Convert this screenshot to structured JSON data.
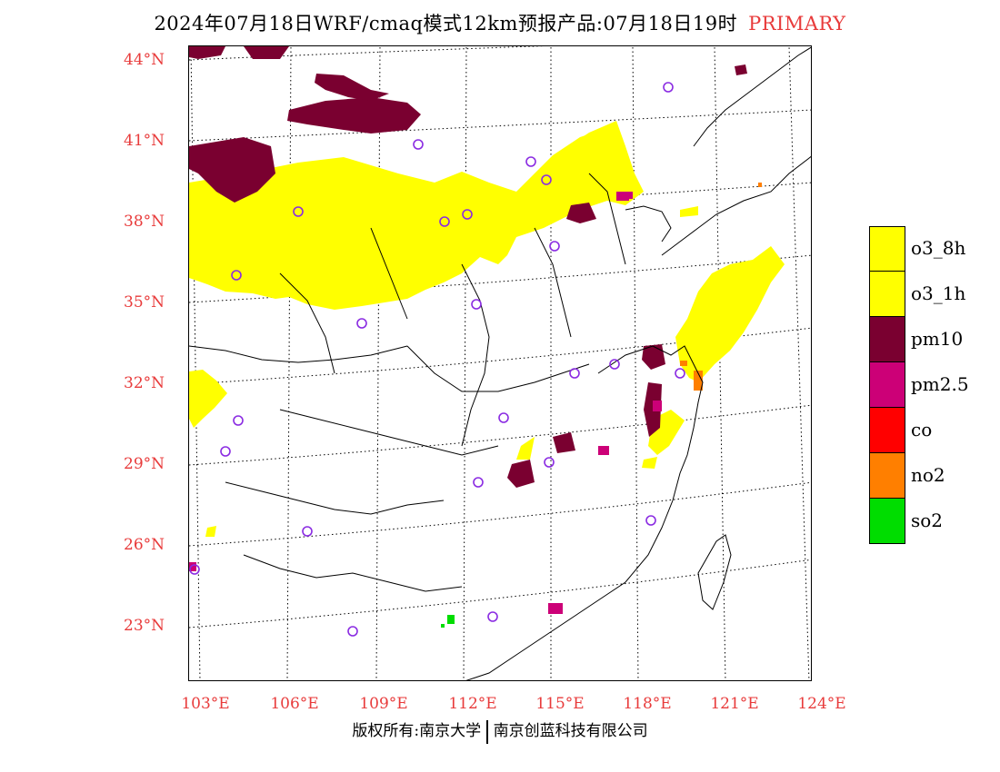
{
  "title": {
    "text": "2024年07月18日WRF/cmaq模式12km预报产品:07月18日19时",
    "tag": "PRIMARY"
  },
  "axes": {
    "lat_labels": [
      "44°N",
      "41°N",
      "38°N",
      "35°N",
      "32°N",
      "29°N",
      "26°N",
      "23°N"
    ],
    "lon_labels": [
      "103°E",
      "106°E",
      "109°E",
      "112°E",
      "115°E",
      "118°E",
      "121°E",
      "124°E"
    ]
  },
  "legend": [
    {
      "label": "o3_8h",
      "color": "#ffff00"
    },
    {
      "label": "o3_1h",
      "color": "#ffff00"
    },
    {
      "label": "pm10",
      "color": "#7a0030"
    },
    {
      "label": "pm2.5",
      "color": "#cc0077"
    },
    {
      "label": "co",
      "color": "#ff0000"
    },
    {
      "label": "no2",
      "color": "#ff7f00"
    },
    {
      "label": "so2",
      "color": "#00dd00"
    }
  ],
  "footer": {
    "left": "版权所有:南京大学",
    "right": "南京创蓝科技有限公司"
  }
}
